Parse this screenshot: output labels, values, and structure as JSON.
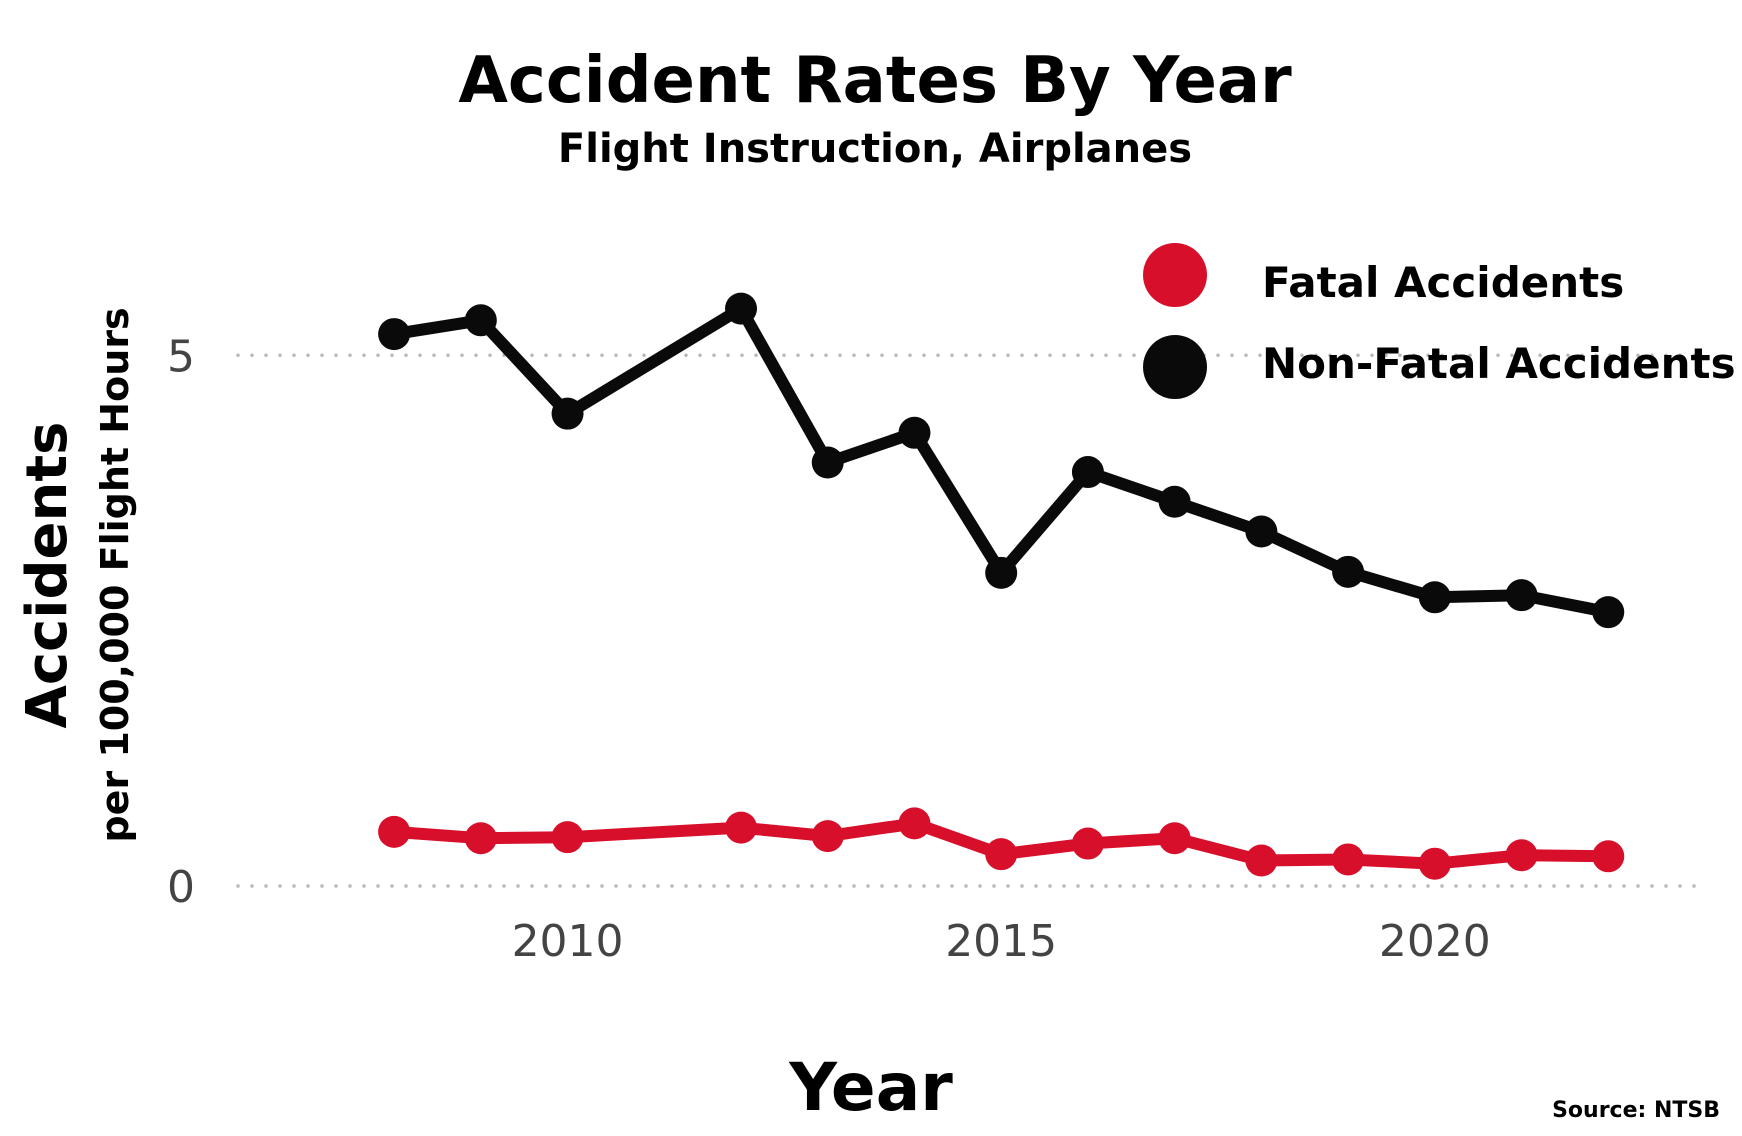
{
  "chart_data": {
    "type": "line",
    "title": "Accident Rates By Year",
    "subtitle": "Flight Instruction, Airplanes",
    "xlabel": "Year",
    "ylabel": "Accidents",
    "ylabel_sub": "per 100,000 Flight Hours",
    "source": "Source: NTSB",
    "x": [
      2008,
      2009,
      2010,
      2012,
      2013,
      2014,
      2015,
      2016,
      2017,
      2018,
      2019,
      2020,
      2021,
      2022
    ],
    "xlim": [
      2006.2,
      2023.0
    ],
    "ylim": [
      0,
      5.05
    ],
    "x_ticks": [
      2010,
      2015,
      2020
    ],
    "y_ticks": [
      0,
      5
    ],
    "grid": "horizontal dotted at y ticks",
    "legend_position": "top-right",
    "series": [
      {
        "name": "Fatal Accidents",
        "color": "#d80f2b",
        "values": [
          0.51,
          0.45,
          0.46,
          0.55,
          0.47,
          0.59,
          0.3,
          0.4,
          0.45,
          0.24,
          0.25,
          0.21,
          0.29,
          0.28
        ]
      },
      {
        "name": "Non-Fatal Accidents",
        "color": "#0a0a0a",
        "values": [
          5.2,
          5.33,
          4.45,
          5.44,
          3.99,
          4.27,
          2.95,
          3.9,
          3.62,
          3.34,
          2.96,
          2.72,
          2.74,
          2.58
        ]
      }
    ]
  }
}
